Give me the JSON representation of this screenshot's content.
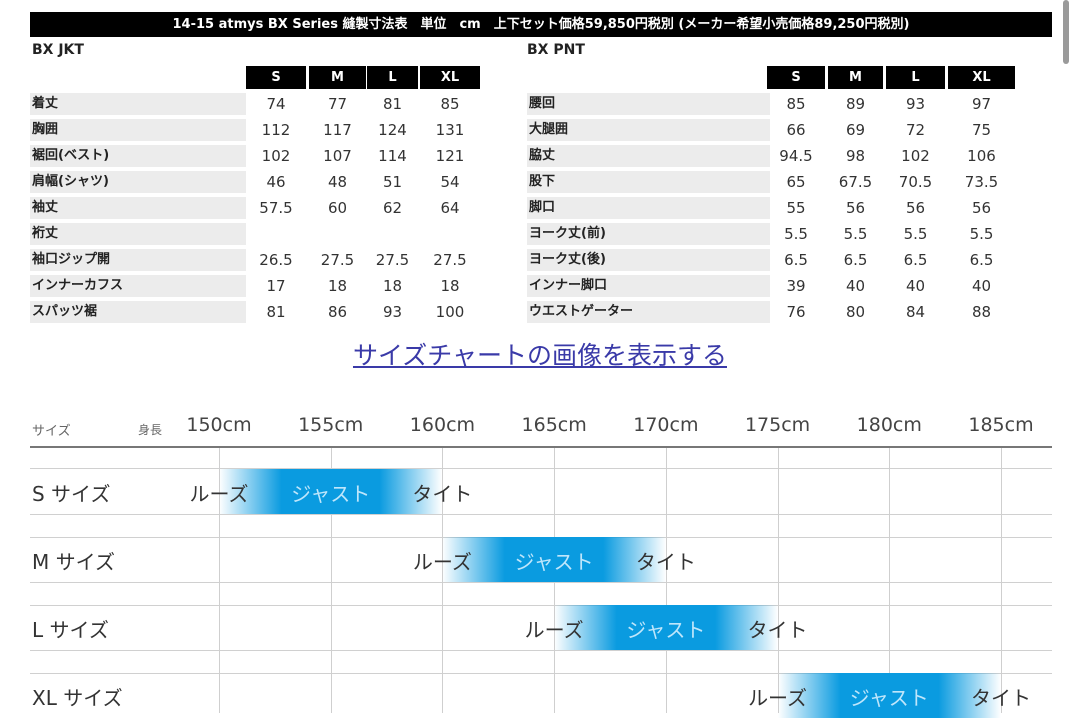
{
  "header": {
    "title": "14-15 atmys BX Series 縫製寸法表　単位　cm　上下セット価格59,850円税別 (メーカー希望小売価格89,250円税別)"
  },
  "jacket": {
    "title": "BX JKT",
    "sizes": [
      "S",
      "M",
      "L",
      "XL"
    ],
    "rows": [
      {
        "label": "着丈",
        "values": [
          "74",
          "77",
          "81",
          "85"
        ]
      },
      {
        "label": "胸囲",
        "values": [
          "112",
          "117",
          "124",
          "131"
        ]
      },
      {
        "label": "裾回(ベスト)",
        "values": [
          "102",
          "107",
          "114",
          "121"
        ]
      },
      {
        "label": "肩幅(シャツ)",
        "values": [
          "46",
          "48",
          "51",
          "54"
        ]
      },
      {
        "label": "袖丈",
        "values": [
          "57.5",
          "60",
          "62",
          "64"
        ]
      },
      {
        "label": "裄丈",
        "values": [
          "",
          "",
          "",
          ""
        ]
      },
      {
        "label": "袖口ジップ開",
        "values": [
          "26.5",
          "27.5",
          "27.5",
          "27.5"
        ]
      },
      {
        "label": "インナーカフス",
        "values": [
          "17",
          "18",
          "18",
          "18"
        ]
      },
      {
        "label": "スパッツ裾",
        "values": [
          "81",
          "86",
          "93",
          "100"
        ]
      }
    ]
  },
  "pants": {
    "title": "BX PNT",
    "sizes": [
      "S",
      "M",
      "L",
      "XL"
    ],
    "rows": [
      {
        "label": "腰回",
        "values": [
          "85",
          "89",
          "93",
          "97"
        ]
      },
      {
        "label": "大腿囲",
        "values": [
          "66",
          "69",
          "72",
          "75"
        ]
      },
      {
        "label": "脇丈",
        "values": [
          "94.5",
          "98",
          "102",
          "106"
        ]
      },
      {
        "label": "股下",
        "values": [
          "65",
          "67.5",
          "70.5",
          "73.5"
        ]
      },
      {
        "label": "脚口",
        "values": [
          "55",
          "56",
          "56",
          "56"
        ]
      },
      {
        "label": "ヨーク丈(前)",
        "values": [
          "5.5",
          "5.5",
          "5.5",
          "5.5"
        ]
      },
      {
        "label": "ヨーク丈(後)",
        "values": [
          "6.5",
          "6.5",
          "6.5",
          "6.5"
        ]
      },
      {
        "label": "インナー脚口",
        "values": [
          "39",
          "40",
          "40",
          "40"
        ]
      },
      {
        "label": "ウエストゲーター",
        "values": [
          "76",
          "80",
          "84",
          "88"
        ]
      }
    ]
  },
  "link": {
    "label": "サイズチャートの画像を表示する"
  },
  "chart_data": {
    "type": "range",
    "size_header": "サイズ",
    "height_header": "身長",
    "x_ticks": [
      150,
      155,
      160,
      165,
      170,
      175,
      180,
      185
    ],
    "tick_labels": [
      "150cm",
      "155cm",
      "160cm",
      "165cm",
      "170cm",
      "175cm",
      "180cm",
      "185cm"
    ],
    "xlim": [
      150,
      185
    ],
    "fit_labels": {
      "loose": "ルーズ",
      "just": "ジャスト",
      "tight": "タイト"
    },
    "bar_color": "#0a9be0",
    "grid": true,
    "rows": [
      {
        "label": "S サイズ",
        "loose": 150,
        "just": 155,
        "tight": 160
      },
      {
        "label": "M サイズ",
        "loose": 160,
        "just": 165,
        "tight": 170
      },
      {
        "label": "L サイズ",
        "loose": 165,
        "just": 170,
        "tight": 175
      },
      {
        "label": "XL サイズ",
        "loose": 175,
        "just": 180,
        "tight": 185
      }
    ]
  }
}
